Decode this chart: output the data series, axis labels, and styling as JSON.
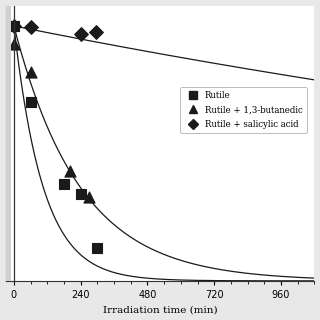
{
  "title": "",
  "xlabel": "Irradiation time (min)",
  "ylabel": "",
  "xlim": [
    -30,
    1080
  ],
  "ylim": [
    0,
    1.08
  ],
  "xticks": [
    0,
    240,
    480,
    720,
    960
  ],
  "yticks": [],
  "series": [
    {
      "label": "Rutile",
      "marker": "s",
      "data_x": [
        0,
        60,
        180,
        240,
        300
      ],
      "data_y": [
        1.0,
        0.7,
        0.38,
        0.34,
        0.13
      ],
      "curve_k": 0.0095
    },
    {
      "label": "Rutile + 1,3-butanedic",
      "marker": "^",
      "data_x": [
        0,
        60,
        200,
        270
      ],
      "data_y": [
        0.93,
        0.82,
        0.43,
        0.33
      ],
      "curve_k": 0.0042
    },
    {
      "label": "Rutile + salicylic acid",
      "marker": "D",
      "data_x": [
        0,
        60,
        240,
        295
      ],
      "data_y": [
        1.0,
        0.995,
        0.97,
        0.975
      ],
      "curve_k": 0.00022
    }
  ],
  "legend_entries": [
    "Rutile",
    "Rutile + 1,3-butanedic",
    "Rutile + salicylic acid"
  ],
  "legend_markers": [
    "s",
    "^",
    "D"
  ],
  "figsize": [
    3.2,
    3.2
  ],
  "dpi": 100,
  "bg_color": "#e8e8e8",
  "plot_bg": "#ffffff",
  "hatch_color": "#cccccc",
  "line_color": "#1a1a1a",
  "marker_color": "#1a1a1a"
}
